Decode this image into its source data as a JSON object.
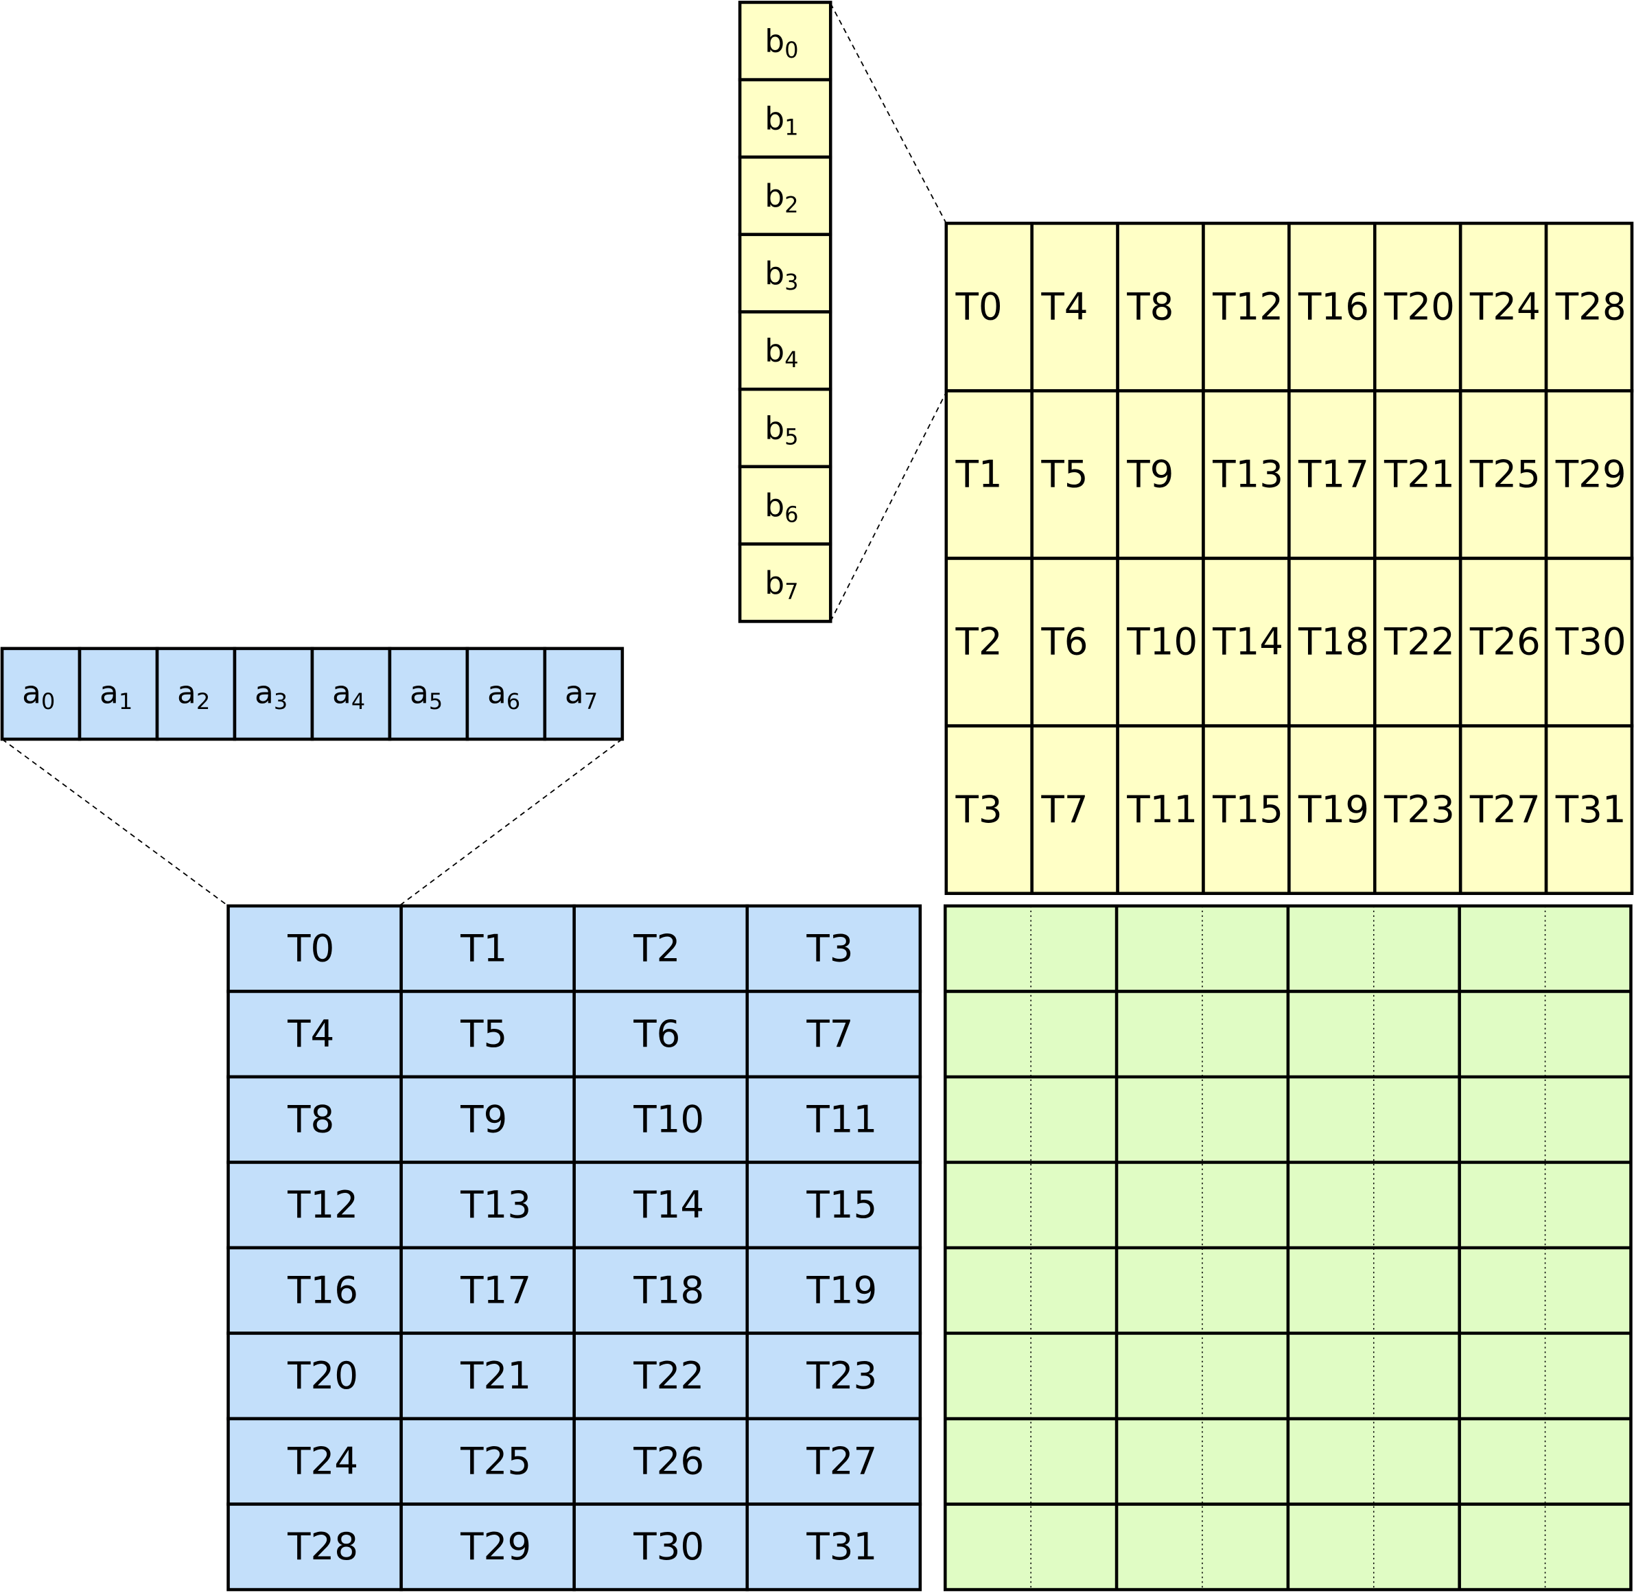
{
  "colors": {
    "b_vector": "#FFFFC6",
    "a_vector": "#C3DFFA",
    "b_matrix": "#FFFFC6",
    "a_matrix": "#C3DFFA",
    "c_matrix": "#E0FCC4",
    "stroke": "#000000"
  },
  "b_vector": [
    {
      "base": "b",
      "sub": "0"
    },
    {
      "base": "b",
      "sub": "1"
    },
    {
      "base": "b",
      "sub": "2"
    },
    {
      "base": "b",
      "sub": "3"
    },
    {
      "base": "b",
      "sub": "4"
    },
    {
      "base": "b",
      "sub": "5"
    },
    {
      "base": "b",
      "sub": "6"
    },
    {
      "base": "b",
      "sub": "7"
    }
  ],
  "a_vector": [
    {
      "base": "a",
      "sub": "0"
    },
    {
      "base": "a",
      "sub": "1"
    },
    {
      "base": "a",
      "sub": "2"
    },
    {
      "base": "a",
      "sub": "3"
    },
    {
      "base": "a",
      "sub": "4"
    },
    {
      "base": "a",
      "sub": "5"
    },
    {
      "base": "a",
      "sub": "6"
    },
    {
      "base": "a",
      "sub": "7"
    }
  ],
  "b_matrix": [
    [
      "T0",
      "T4",
      "T8",
      "T12",
      "T16",
      "T20",
      "T24",
      "T28"
    ],
    [
      "T1",
      "T5",
      "T9",
      "T13",
      "T17",
      "T21",
      "T25",
      "T29"
    ],
    [
      "T2",
      "T6",
      "T10",
      "T14",
      "T18",
      "T22",
      "T26",
      "T30"
    ],
    [
      "T3",
      "T7",
      "T11",
      "T15",
      "T19",
      "T23",
      "T27",
      "T31"
    ]
  ],
  "a_matrix": [
    [
      "T0",
      "T1",
      "T2",
      "T3"
    ],
    [
      "T4",
      "T5",
      "T6",
      "T7"
    ],
    [
      "T8",
      "T9",
      "T10",
      "T11"
    ],
    [
      "T12",
      "T13",
      "T14",
      "T15"
    ],
    [
      "T16",
      "T17",
      "T18",
      "T19"
    ],
    [
      "T20",
      "T21",
      "T22",
      "T23"
    ],
    [
      "T24",
      "T25",
      "T26",
      "T27"
    ],
    [
      "T28",
      "T29",
      "T30",
      "T31"
    ]
  ]
}
